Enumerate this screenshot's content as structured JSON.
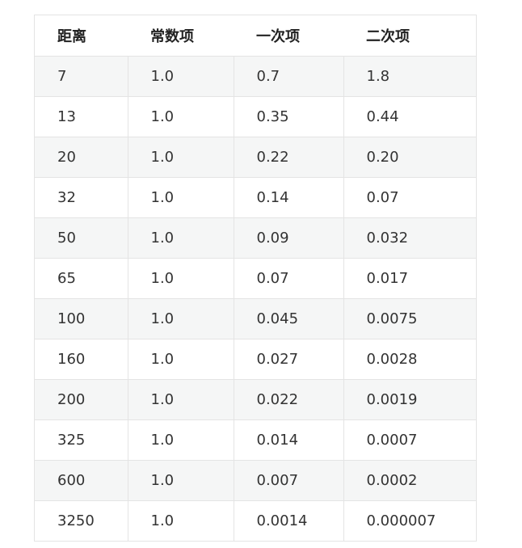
{
  "table": {
    "headers": [
      "距离",
      "常数项",
      "一次项",
      "二次项"
    ],
    "rows": [
      [
        "7",
        "1.0",
        "0.7",
        "1.8"
      ],
      [
        "13",
        "1.0",
        "0.35",
        "0.44"
      ],
      [
        "20",
        "1.0",
        "0.22",
        "0.20"
      ],
      [
        "32",
        "1.0",
        "0.14",
        "0.07"
      ],
      [
        "50",
        "1.0",
        "0.09",
        "0.032"
      ],
      [
        "65",
        "1.0",
        "0.07",
        "0.017"
      ],
      [
        "100",
        "1.0",
        "0.045",
        "0.0075"
      ],
      [
        "160",
        "1.0",
        "0.027",
        "0.0028"
      ],
      [
        "200",
        "1.0",
        "0.022",
        "0.0019"
      ],
      [
        "325",
        "1.0",
        "0.014",
        "0.0007"
      ],
      [
        "600",
        "1.0",
        "0.007",
        "0.0002"
      ],
      [
        "3250",
        "1.0",
        "0.0014",
        "0.000007"
      ]
    ]
  }
}
